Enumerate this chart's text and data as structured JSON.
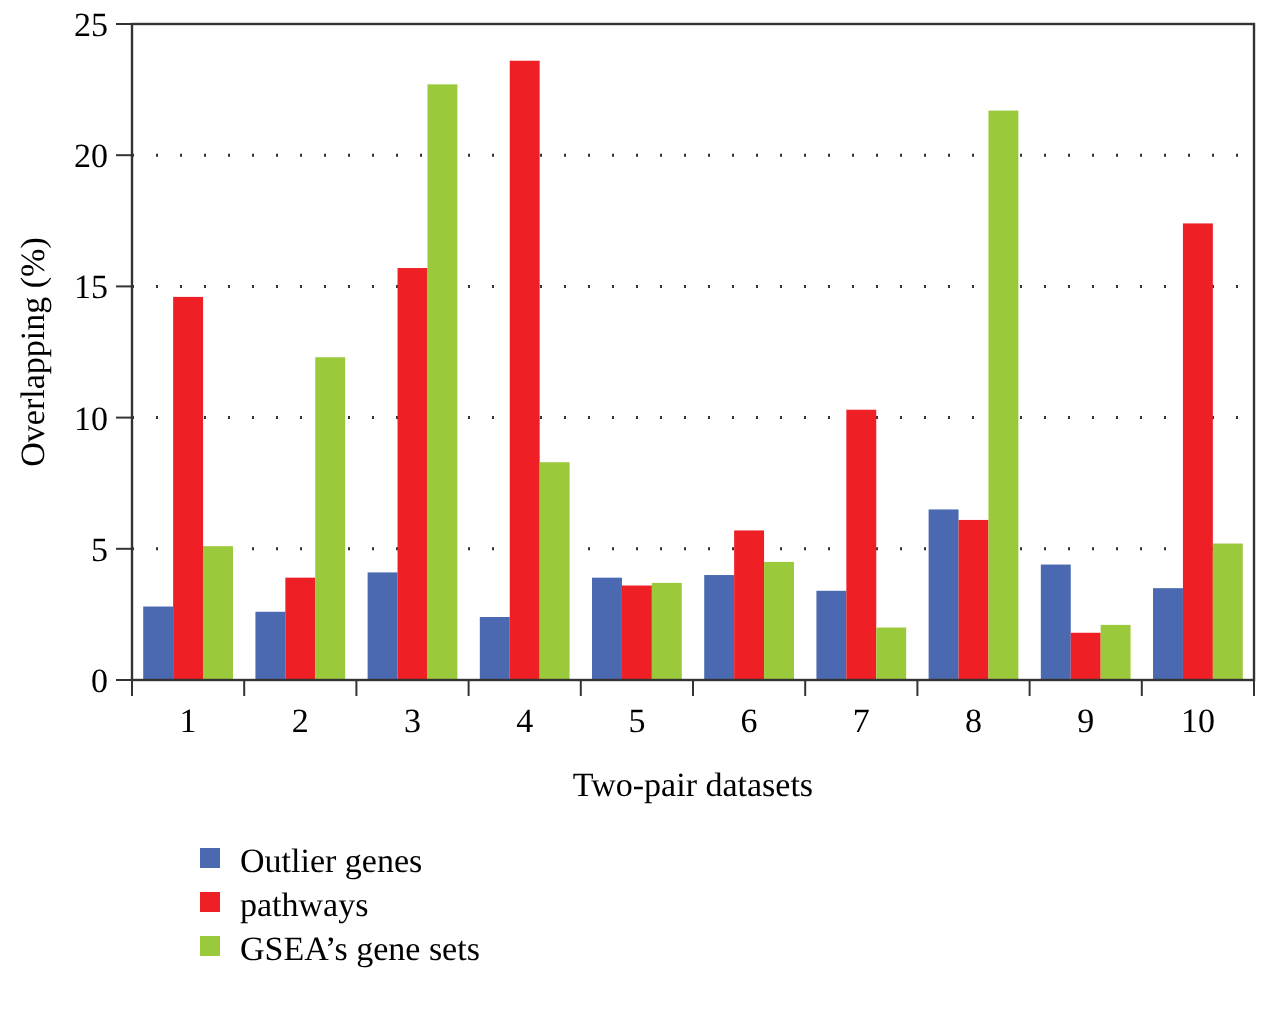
{
  "chart_data": {
    "type": "bar",
    "xlabel": "Two-pair datasets",
    "ylabel": "Overlapping (%)",
    "categories": [
      "1",
      "2",
      "3",
      "4",
      "5",
      "6",
      "7",
      "8",
      "9",
      "10"
    ],
    "series": [
      {
        "name": "Outlier genes",
        "color": "#4a69b0",
        "values": [
          2.8,
          2.6,
          4.1,
          2.4,
          3.9,
          4.0,
          3.4,
          6.5,
          4.4,
          3.5
        ]
      },
      {
        "name": "pathways",
        "color": "#ee1f25",
        "values": [
          14.6,
          3.9,
          15.7,
          23.6,
          3.6,
          5.7,
          10.3,
          6.1,
          1.8,
          17.4
        ]
      },
      {
        "name": "GSEA’s gene sets",
        "color": "#9bc93c",
        "values": [
          5.1,
          12.3,
          22.7,
          8.3,
          3.7,
          4.5,
          2.0,
          21.7,
          2.1,
          5.2
        ]
      }
    ],
    "ylim": [
      0,
      25
    ],
    "yticks": [
      0,
      5,
      10,
      15,
      20,
      25
    ],
    "grid": "y",
    "legend": "bottom left"
  }
}
